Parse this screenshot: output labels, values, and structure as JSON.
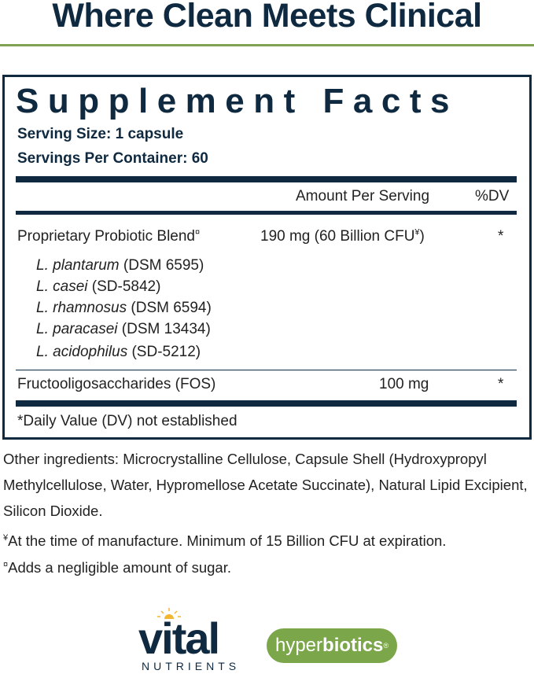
{
  "header": {
    "title": "Where Clean Meets Clinical"
  },
  "facts": {
    "title": "Supplement Facts",
    "serving_size": "Serving Size: 1 capsule",
    "servings_per_container": "Servings Per Container: 60",
    "col_amount": "Amount Per Serving",
    "col_dv": "%DV",
    "rows": [
      {
        "name": "Proprietary Probiotic Blend",
        "mark": "¤",
        "amount": "190 mg (60 Billion CFU",
        "amount_mark": "¥",
        "amount_end": ")",
        "dv": "*"
      },
      {
        "name": "Fructooligosaccharides (FOS)",
        "amount": "100 mg",
        "dv": "*"
      }
    ],
    "strains": [
      {
        "species": "L. plantarum",
        "code": "(DSM 6595)"
      },
      {
        "species": "L. casei",
        "code": "(SD-5842)"
      },
      {
        "species": "L. rhamnosus",
        "code": "(DSM 6594)"
      },
      {
        "species": "L. paracasei",
        "code": "(DSM 13434)"
      },
      {
        "species": "L. acidophilus",
        "code": "(SD-5212)"
      }
    ],
    "footnote": "*Daily Value (DV) not established"
  },
  "other": {
    "line1": "Other ingredients: Microcrystalline Cellulose, Capsule Shell (Hydroxypropyl",
    "line2": "Methylcellulose, Water, Hypromellose Acetate Succinate), Natural Lipid Excipient,",
    "line3": "Silicon Dioxide.",
    "note1_mark": "¥",
    "note1": "At the time of manufacture. Minimum of 15 Billion CFU at expiration.",
    "note2_mark": "¤",
    "note2": "Adds a negligible amount of sugar."
  },
  "logos": {
    "vital": "vital",
    "nutrients": "NUTRIENTS",
    "hyper": "hyper",
    "biotics": "biotics",
    "colors": {
      "navy": "#0f2a40",
      "green": "#7fa351"
    }
  }
}
